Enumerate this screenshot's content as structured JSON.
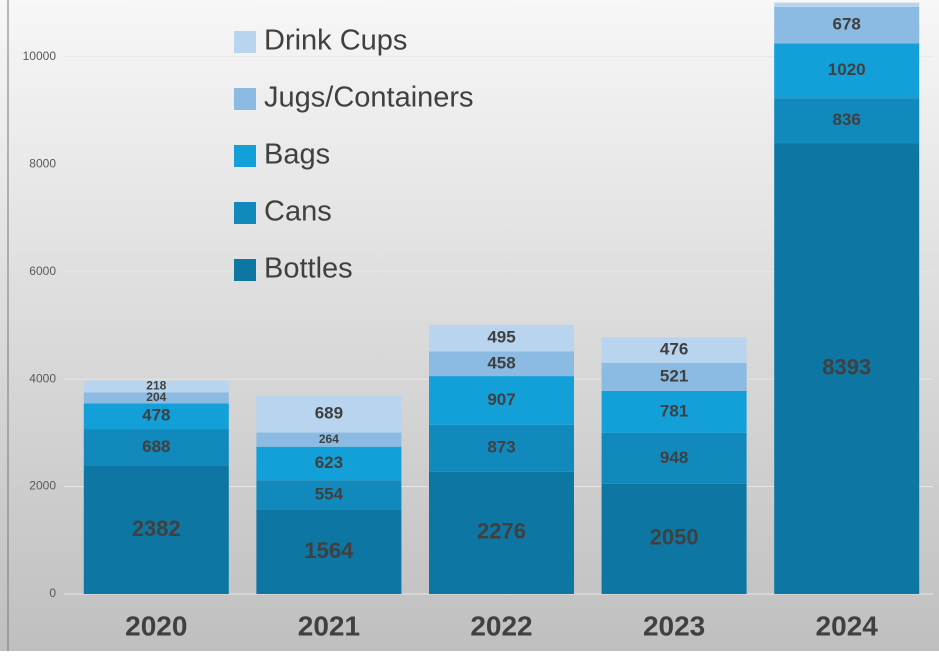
{
  "chart_data": {
    "type": "stacked_bar",
    "categories": [
      "2020",
      "2021",
      "2022",
      "2023",
      "2024"
    ],
    "series": [
      {
        "name": "Bottles",
        "color": "#0e76a3",
        "values": [
          2382,
          1564,
          2276,
          2050,
          8393
        ]
      },
      {
        "name": "Cans",
        "color": "#1289bc",
        "values": [
          688,
          554,
          873,
          948,
          836
        ]
      },
      {
        "name": "Bags",
        "color": "#139fd8",
        "values": [
          478,
          623,
          907,
          781,
          1020
        ]
      },
      {
        "name": "Jugs/Containers",
        "color": "#8bbbe3",
        "values": [
          204,
          264,
          458,
          521,
          678
        ]
      },
      {
        "name": "Drink Cups",
        "color": "#b8d4ee",
        "values": [
          218,
          689,
          495,
          476,
          80
        ],
        "value_labels": [
          "218",
          "689",
          "495",
          "476",
          null
        ]
      }
    ],
    "ylim": [
      0,
      11000
    ],
    "yticks": [
      0,
      2000,
      4000,
      6000,
      8000,
      10000
    ],
    "grid": true,
    "legend": "top-left"
  }
}
